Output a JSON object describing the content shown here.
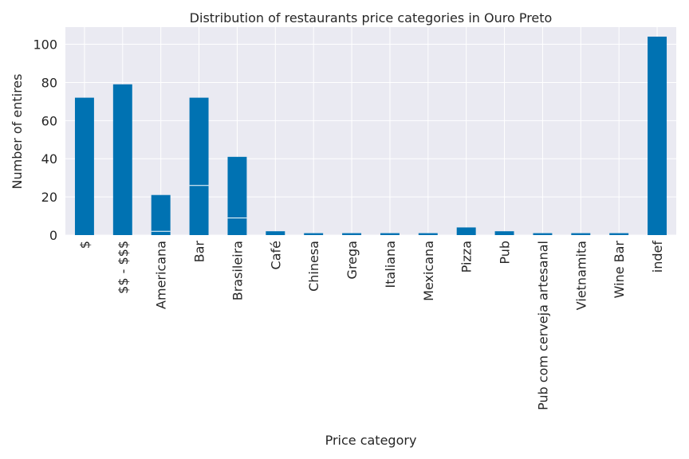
{
  "chart_data": {
    "type": "bar",
    "title": "Distribution of restaurants price categories in Ouro Preto",
    "xlabel": "Price category",
    "ylabel": "Number of entires",
    "categories": [
      "$",
      "$$ - $$$",
      "Americana",
      "Bar",
      "Brasileira",
      "Café",
      "Chinesa",
      "Grega",
      "Italiana",
      "Mexicana",
      "Pizza",
      "Pub",
      "Pub com cerveja artesanal",
      "Vietnamita",
      "Wine Bar",
      "indef"
    ],
    "values": [
      72,
      79,
      21,
      72,
      41,
      2,
      1,
      1,
      1,
      1,
      4,
      2,
      1,
      1,
      1,
      104
    ],
    "inner_segment_boundaries": [
      null,
      null,
      2,
      26,
      9,
      null,
      null,
      null,
      null,
      null,
      null,
      null,
      null,
      null,
      null,
      null
    ],
    "ylim": [
      0,
      109
    ],
    "yticks": [
      0,
      20,
      40,
      60,
      80,
      100
    ],
    "grid": true,
    "legend": "none",
    "colors": {
      "bar": "#0072B2",
      "background": "#EAEAF2",
      "grid": "#ffffff"
    }
  }
}
